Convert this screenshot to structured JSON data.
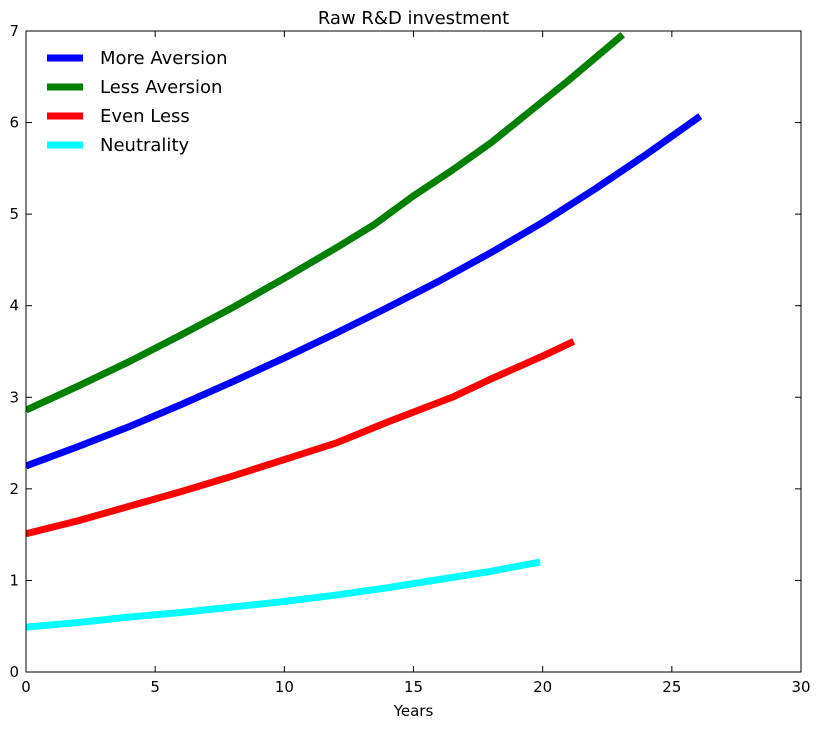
{
  "chart_data": {
    "type": "line",
    "title": "Raw R&D investment",
    "xlabel": "Years",
    "ylabel": "",
    "xlim": [
      0,
      30
    ],
    "ylim": [
      0,
      7
    ],
    "xticks": [
      0,
      5,
      10,
      15,
      20,
      25,
      30
    ],
    "yticks": [
      0,
      1,
      2,
      3,
      4,
      5,
      6,
      7
    ],
    "grid": false,
    "legend_position": "top-left",
    "series": [
      {
        "name": "More Aversion",
        "color": "#0000ff",
        "x": [
          0,
          2,
          4,
          6,
          8,
          10,
          12,
          14,
          16,
          18,
          20,
          22,
          24,
          26.1
        ],
        "y": [
          2.25,
          2.46,
          2.68,
          2.92,
          3.17,
          3.43,
          3.7,
          3.98,
          4.27,
          4.58,
          4.91,
          5.27,
          5.65,
          6.07
        ]
      },
      {
        "name": "Less Aversion",
        "color": "#008000",
        "x": [
          0,
          2,
          4,
          6,
          8,
          10,
          12,
          13.5,
          15,
          16.5,
          18,
          19.5,
          21,
          23.1
        ],
        "y": [
          2.86,
          3.12,
          3.39,
          3.68,
          3.98,
          4.3,
          4.63,
          4.89,
          5.2,
          5.48,
          5.78,
          6.12,
          6.46,
          6.96
        ]
      },
      {
        "name": "Even Less",
        "color": "#ff0000",
        "x": [
          0,
          2,
          4,
          6,
          8,
          10,
          12,
          14,
          16.5,
          18,
          20,
          21.2
        ],
        "y": [
          1.51,
          1.65,
          1.81,
          1.97,
          2.14,
          2.32,
          2.5,
          2.73,
          3.0,
          3.2,
          3.45,
          3.61
        ]
      },
      {
        "name": "Neutrality",
        "color": "#00ffff",
        "x": [
          0,
          2,
          4,
          6,
          8,
          10,
          12,
          14,
          16,
          18,
          19.9
        ],
        "y": [
          0.49,
          0.54,
          0.6,
          0.65,
          0.71,
          0.77,
          0.84,
          0.92,
          1.01,
          1.1,
          1.2
        ]
      }
    ]
  }
}
